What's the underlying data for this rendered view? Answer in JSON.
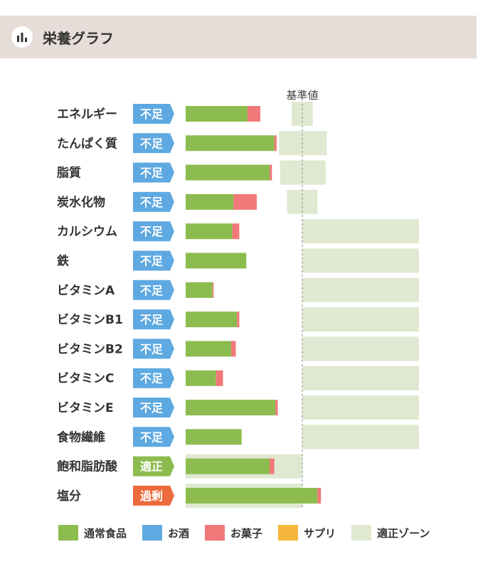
{
  "header": {
    "title": "栄養グラフ",
    "icon": "bar-chart-icon"
  },
  "colors": {
    "normal_food": "#8cbc4f",
    "alcohol": "#5ea9e1",
    "snack": "#f07878",
    "supplement": "#f5b83d",
    "zone": "#dfe9d1",
    "badge_short": "#5ea9e1",
    "badge_ok": "#8cbc4f",
    "badge_over": "#ec6a3c"
  },
  "chart_data": {
    "type": "bar",
    "orientation": "horizontal",
    "stacked": true,
    "reference_label": "基準値",
    "reference_value": 100,
    "xlim": [
      0,
      200
    ],
    "categories": [
      "エネルギー",
      "たんぱく質",
      "脂質",
      "炭水化物",
      "カルシウム",
      "鉄",
      "ビタミンA",
      "ビタミンB1",
      "ビタミンB2",
      "ビタミンC",
      "ビタミンE",
      "食物繊維",
      "飽和脂肪酸",
      "塩分"
    ],
    "status": [
      "不足",
      "不足",
      "不足",
      "不足",
      "不足",
      "不足",
      "不足",
      "不足",
      "不足",
      "不足",
      "不足",
      "不足",
      "適正",
      "過剰"
    ],
    "status_type": [
      "short",
      "short",
      "short",
      "short",
      "short",
      "short",
      "short",
      "short",
      "short",
      "short",
      "short",
      "short",
      "ok",
      "over"
    ],
    "series": [
      {
        "name": "通常食品",
        "values": [
          53,
          76,
          72,
          41,
          40,
          52,
          23,
          44,
          39,
          26,
          77,
          48,
          72,
          113
        ]
      },
      {
        "name": "お酒",
        "values": [
          0,
          0,
          0,
          0,
          0,
          0,
          0,
          0,
          0,
          0,
          0,
          0,
          0,
          0
        ]
      },
      {
        "name": "お菓子",
        "values": [
          11,
          2,
          2,
          20,
          6,
          0,
          1,
          2,
          4,
          6,
          2,
          0,
          4,
          3
        ]
      },
      {
        "name": "サプリ",
        "values": [
          0,
          0,
          0,
          0,
          0,
          0,
          0,
          0,
          0,
          0,
          0,
          0,
          0,
          0
        ]
      }
    ],
    "zone_ranges": [
      [
        91,
        109
      ],
      [
        80,
        121
      ],
      [
        81,
        120
      ],
      [
        87,
        113
      ],
      [
        100,
        200
      ],
      [
        100,
        200
      ],
      [
        100,
        200
      ],
      [
        100,
        200
      ],
      [
        100,
        200
      ],
      [
        100,
        200
      ],
      [
        100,
        200
      ],
      [
        100,
        200
      ],
      [
        0,
        100
      ],
      [
        0,
        100
      ]
    ],
    "legend": [
      "通常食品",
      "お酒",
      "お菓子",
      "サプリ",
      "適正ゾーン"
    ]
  }
}
